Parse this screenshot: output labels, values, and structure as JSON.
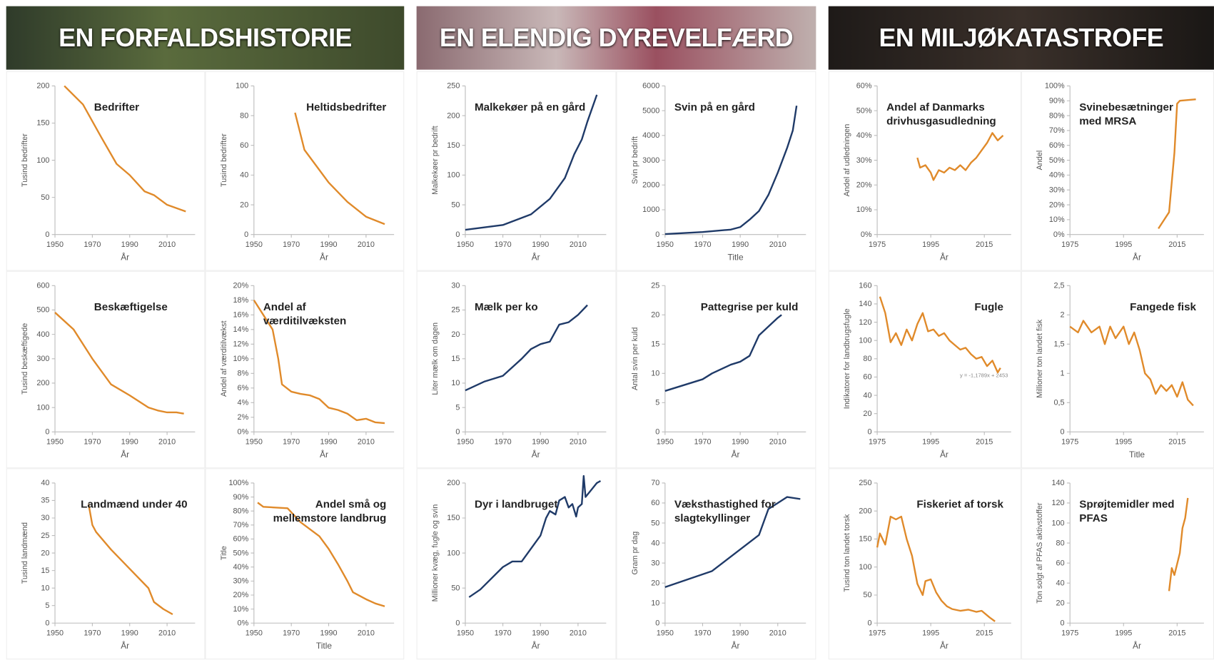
{
  "sections": [
    "EN FORFALDSHISTORIE",
    "EN ELENDIG DYREVELFÆRD",
    "EN MILJØKATASTROFE"
  ],
  "chart_data": [
    {
      "type": "line",
      "title": "Bedrifter",
      "ylabel": "Tusind bedrifter",
      "xlabel": "År",
      "color": "#e08a2a",
      "x": [
        1955,
        1965,
        1975,
        1983,
        1990,
        1998,
        2003,
        2010,
        2020
      ],
      "values": [
        200,
        175,
        130,
        95,
        80,
        58,
        53,
        40,
        31
      ],
      "xlim": [
        1950,
        2025
      ],
      "xticks": [
        1950,
        1970,
        1990,
        2010
      ],
      "ylim": [
        0,
        200
      ],
      "yticks": [
        0,
        50,
        100,
        150,
        200
      ]
    },
    {
      "type": "line",
      "title": "Heltidsbedrifter",
      "ylabel": "Tusind bedrifter",
      "xlabel": "År",
      "color": "#e08a2a",
      "x": [
        1972,
        1977,
        1990,
        2000,
        2010,
        2020
      ],
      "values": [
        82,
        57,
        35,
        22,
        12,
        7
      ],
      "xlim": [
        1950,
        2025
      ],
      "xticks": [
        1950,
        1970,
        1990,
        2010
      ],
      "ylim": [
        0,
        100
      ],
      "yticks": [
        0,
        20,
        40,
        60,
        80,
        100
      ]
    },
    {
      "type": "line",
      "title": "Beskæftigelse",
      "ylabel": "Tusind beskæftigede",
      "xlabel": "År",
      "color": "#e08a2a",
      "x": [
        1950,
        1960,
        1970,
        1980,
        1990,
        2000,
        2005,
        2010,
        2015,
        2019
      ],
      "values": [
        490,
        420,
        300,
        195,
        150,
        100,
        88,
        80,
        80,
        75
      ],
      "xlim": [
        1950,
        2025
      ],
      "xticks": [
        1950,
        1970,
        1990,
        2010
      ],
      "ylim": [
        0,
        600
      ],
      "yticks": [
        0,
        100,
        200,
        300,
        400,
        500,
        600
      ]
    },
    {
      "type": "line",
      "title": "Andel af værditilvæksten",
      "ylabel": "Andel af værditilvækst",
      "xlabel": "År",
      "color": "#e08a2a",
      "x": [
        1950,
        1955,
        1960,
        1963,
        1965,
        1970,
        1975,
        1980,
        1985,
        1990,
        1995,
        2000,
        2005,
        2010,
        2015,
        2020
      ],
      "values": [
        18,
        16,
        14,
        10,
        6.5,
        5.5,
        5.2,
        5,
        4.5,
        3.3,
        3,
        2.5,
        1.6,
        1.8,
        1.3,
        1.2
      ],
      "xlim": [
        1950,
        2025
      ],
      "xticks": [
        1950,
        1970,
        1990,
        2010
      ],
      "ylim": [
        0,
        20
      ],
      "yticks": [
        {
          "value": 0,
          "label": "0%"
        },
        {
          "value": 2,
          "label": "2%"
        },
        {
          "value": 4,
          "label": "4%"
        },
        {
          "value": 6,
          "label": "6%"
        },
        {
          "value": 8,
          "label": "8%"
        },
        {
          "value": 10,
          "label": "10%"
        },
        {
          "value": 12,
          "label": "12%"
        },
        {
          "value": 14,
          "label": "14%"
        },
        {
          "value": 16,
          "label": "16%"
        },
        {
          "value": 18,
          "label": "18%"
        },
        {
          "value": 20,
          "label": "20%"
        }
      ]
    },
    {
      "type": "line",
      "title": "Landmænd under 40",
      "ylabel": "Tusind landmænd",
      "xlabel": "År",
      "color": "#e08a2a",
      "x": [
        1968,
        1970,
        1972,
        1980,
        1990,
        2000,
        2003,
        2008,
        2013
      ],
      "values": [
        34,
        28,
        26,
        21,
        15.5,
        10,
        6,
        4,
        2.5
      ],
      "xlim": [
        1950,
        2025
      ],
      "xticks": [
        1950,
        1970,
        1990,
        2010
      ],
      "ylim": [
        0,
        40
      ],
      "yticks": [
        0,
        5,
        10,
        15,
        20,
        25,
        30,
        35,
        40
      ]
    },
    {
      "type": "line",
      "title": "Andel små og mellemstore landbrug",
      "ylabel": "Title",
      "xlabel": "Title",
      "color": "#e08a2a",
      "x": [
        1952,
        1955,
        1968,
        1975,
        1985,
        1990,
        1995,
        2000,
        2003,
        2010,
        2015,
        2020
      ],
      "values": [
        86,
        83,
        82,
        72,
        62,
        53,
        42,
        30,
        22,
        17,
        14,
        12
      ],
      "xlim": [
        1950,
        2025
      ],
      "xticks": [
        1950,
        1970,
        1990,
        2010
      ],
      "ylim": [
        0,
        100
      ],
      "yticks": [
        {
          "value": 0,
          "label": "0%"
        },
        {
          "value": 10,
          "label": "10%"
        },
        {
          "value": 20,
          "label": "20%"
        },
        {
          "value": 30,
          "label": "30%"
        },
        {
          "value": 40,
          "label": "40%"
        },
        {
          "value": 50,
          "label": "50%"
        },
        {
          "value": 60,
          "label": "60%"
        },
        {
          "value": 70,
          "label": "70%"
        },
        {
          "value": 80,
          "label": "80%"
        },
        {
          "value": 90,
          "label": "90%"
        },
        {
          "value": 100,
          "label": "100%"
        }
      ]
    },
    {
      "type": "line",
      "title": "Malkekøer på en gård",
      "ylabel": "Malkekøer pr bedrift",
      "xlabel": "År",
      "color": "#1f3a68",
      "x": [
        1950,
        1960,
        1970,
        1980,
        1985,
        1995,
        2003,
        2008,
        2012,
        2015,
        2020
      ],
      "values": [
        8,
        12,
        16,
        28,
        34,
        60,
        95,
        135,
        160,
        190,
        235
      ],
      "xlim": [
        1950,
        2025
      ],
      "xticks": [
        1950,
        1970,
        1990,
        2010
      ],
      "ylim": [
        0,
        250
      ],
      "yticks": [
        0,
        50,
        100,
        150,
        200,
        250
      ]
    },
    {
      "type": "line",
      "title": "Svin på en gård",
      "ylabel": "Svin pr bedrift",
      "xlabel": "Title",
      "color": "#1f3a68",
      "x": [
        1950,
        1970,
        1985,
        1990,
        1995,
        2000,
        2005,
        2010,
        2015,
        2018,
        2020
      ],
      "values": [
        20,
        100,
        200,
        300,
        600,
        950,
        1600,
        2500,
        3500,
        4200,
        5200
      ],
      "xlim": [
        1950,
        2025
      ],
      "xticks": [
        1950,
        1970,
        1990,
        2010
      ],
      "ylim": [
        0,
        6000
      ],
      "yticks": [
        0,
        1000,
        2000,
        3000,
        4000,
        5000,
        6000
      ]
    },
    {
      "type": "line",
      "title": "Mælk per ko",
      "ylabel": "Liter mælk om dagen",
      "xlabel": "År",
      "color": "#1f3a68",
      "x": [
        1950,
        1960,
        1970,
        1980,
        1985,
        1990,
        1995,
        2000,
        2005,
        2010,
        2015
      ],
      "values": [
        8.5,
        10.3,
        11.5,
        15,
        17,
        18,
        18.5,
        22,
        22.5,
        24,
        26
      ],
      "xlim": [
        1950,
        2025
      ],
      "xticks": [
        1950,
        1970,
        1990,
        2010
      ],
      "ylim": [
        0,
        30
      ],
      "yticks": [
        0,
        5,
        10,
        15,
        20,
        25,
        30
      ]
    },
    {
      "type": "line",
      "title": "Pattegrise per kuld",
      "ylabel": "Antal svin per kuld",
      "xlabel": "År",
      "color": "#1f3a68",
      "x": [
        1950,
        1970,
        1975,
        1985,
        1990,
        1995,
        2000,
        2005,
        2010,
        2012
      ],
      "values": [
        7,
        9,
        10,
        11.5,
        12,
        13,
        16.5,
        18,
        19.5,
        20
      ],
      "xlim": [
        1950,
        2025
      ],
      "xticks": [
        1950,
        1970,
        1990,
        2010
      ],
      "ylim": [
        0,
        25
      ],
      "yticks": [
        0,
        5,
        10,
        15,
        20,
        25
      ]
    },
    {
      "type": "line",
      "title": "Dyr i landbruget",
      "ylabel": "Millioner kvæg, fugle og svin",
      "xlabel": "År",
      "color": "#1f3a68",
      "x": [
        1952,
        1958,
        1970,
        1975,
        1980,
        1990,
        1993,
        1995,
        1998,
        2000,
        2003,
        2005,
        2007,
        2009,
        2010,
        2012,
        2013,
        2014,
        2017,
        2020,
        2022
      ],
      "values": [
        37,
        48,
        80,
        88,
        88,
        125,
        150,
        160,
        155,
        175,
        180,
        165,
        170,
        152,
        165,
        170,
        210,
        180,
        190,
        200,
        203
      ],
      "xlim": [
        1950,
        2025
      ],
      "xticks": [
        1950,
        1970,
        1990,
        2010
      ],
      "ylim": [
        0,
        200
      ],
      "yticks": [
        0,
        50,
        100,
        150,
        200
      ]
    },
    {
      "type": "line",
      "title": "Væksthastighed for slagtekyllinger",
      "ylabel": "Gram pr dag",
      "xlabel": "År",
      "color": "#1f3a68",
      "x": [
        1950,
        1975,
        2000,
        2005,
        2010,
        2015,
        2022
      ],
      "values": [
        18,
        26,
        44,
        57,
        60,
        63,
        62
      ],
      "xlim": [
        1950,
        2025
      ],
      "xticks": [
        1950,
        1970,
        1990,
        2010
      ],
      "ylim": [
        0,
        70
      ],
      "yticks": [
        0,
        10,
        20,
        30,
        40,
        50,
        60,
        70
      ]
    },
    {
      "type": "line",
      "title": "Andel af Danmarks drivhusgasudledning",
      "ylabel": "Andel af udledningen",
      "xlabel": "År",
      "color": "#e08a2a",
      "x": [
        1990,
        1991,
        1993,
        1995,
        1996,
        1998,
        2000,
        2002,
        2004,
        2006,
        2008,
        2010,
        2012,
        2014,
        2016,
        2018,
        2020,
        2022
      ],
      "values": [
        31,
        27,
        28,
        25,
        22,
        26,
        25,
        27,
        26,
        28,
        26,
        29,
        31,
        34,
        37,
        41,
        38,
        40
      ],
      "xlim": [
        1975,
        2025
      ],
      "xticks": [
        1975,
        1995,
        2015
      ],
      "ylim": [
        0,
        60
      ],
      "yticks": [
        {
          "value": 0,
          "label": "0%"
        },
        {
          "value": 10,
          "label": "10%"
        },
        {
          "value": 20,
          "label": "20%"
        },
        {
          "value": 30,
          "label": "30%"
        },
        {
          "value": 40,
          "label": "40%"
        },
        {
          "value": 50,
          "label": "50%"
        },
        {
          "value": 60,
          "label": "60%"
        }
      ]
    },
    {
      "type": "line",
      "title": "Svinebesætninger med MRSA",
      "ylabel": "Andel",
      "xlabel": "År",
      "color": "#e08a2a",
      "x": [
        2008,
        2012,
        2014,
        2015,
        2016,
        2022
      ],
      "values": [
        4,
        15,
        55,
        88,
        90,
        91
      ],
      "xlim": [
        1975,
        2025
      ],
      "xticks": [
        1975,
        1995,
        2015
      ],
      "ylim": [
        0,
        100
      ],
      "yticks": [
        {
          "value": 0,
          "label": "0%"
        },
        {
          "value": 10,
          "label": "10%"
        },
        {
          "value": 20,
          "label": "20%"
        },
        {
          "value": 30,
          "label": "30%"
        },
        {
          "value": 40,
          "label": "40%"
        },
        {
          "value": 50,
          "label": "50%"
        },
        {
          "value": 60,
          "label": "60%"
        },
        {
          "value": 70,
          "label": "70%"
        },
        {
          "value": 80,
          "label": "80%"
        },
        {
          "value": 90,
          "label": "90%"
        },
        {
          "value": 100,
          "label": "100%"
        }
      ]
    },
    {
      "type": "line",
      "title": "Fugle",
      "ylabel": "Indikatorer for landbrugsfugle",
      "xlabel": "År",
      "color": "#e08a2a",
      "annotation": "y = -1,1789x + 2453",
      "x": [
        1976,
        1978,
        1980,
        1982,
        1984,
        1986,
        1988,
        1990,
        1992,
        1994,
        1996,
        1998,
        2000,
        2002,
        2004,
        2006,
        2008,
        2010,
        2012,
        2014,
        2016,
        2018,
        2020,
        2021
      ],
      "values": [
        148,
        130,
        98,
        108,
        95,
        112,
        100,
        118,
        130,
        110,
        112,
        105,
        108,
        100,
        95,
        90,
        92,
        85,
        80,
        82,
        72,
        78,
        65,
        70
      ],
      "xlim": [
        1975,
        2025
      ],
      "xticks": [
        1975,
        1995,
        2015
      ],
      "ylim": [
        0,
        160
      ],
      "yticks": [
        0,
        20,
        40,
        60,
        80,
        100,
        120,
        140,
        160
      ]
    },
    {
      "type": "line",
      "title": "Fangede fisk",
      "ylabel": "Millioner ton landet fisk",
      "xlabel": "Title",
      "color": "#e08a2a",
      "x": [
        1975,
        1978,
        1980,
        1983,
        1986,
        1988,
        1990,
        1992,
        1995,
        1997,
        1999,
        2001,
        2003,
        2005,
        2007,
        2009,
        2011,
        2013,
        2015,
        2017,
        2019,
        2021
      ],
      "values": [
        1.8,
        1.7,
        1.9,
        1.7,
        1.8,
        1.5,
        1.8,
        1.6,
        1.8,
        1.5,
        1.7,
        1.4,
        1.0,
        0.9,
        0.65,
        0.8,
        0.7,
        0.8,
        0.6,
        0.85,
        0.55,
        0.45
      ],
      "xlim": [
        1975,
        2025
      ],
      "xticks": [
        1975,
        1995,
        2015
      ],
      "ylim": [
        0,
        2.5
      ],
      "yticks": [
        0,
        {
          "value": 0.5,
          "label": "0,5"
        },
        1,
        {
          "value": 1.5,
          "label": "1,5"
        },
        2,
        {
          "value": 2.5,
          "label": "2,5"
        }
      ]
    },
    {
      "type": "line",
      "title": "Fiskeriet af torsk",
      "ylabel": "Tusind ton landet torsk",
      "xlabel": "År",
      "color": "#e08a2a",
      "x": [
        1975,
        1976,
        1978,
        1980,
        1982,
        1984,
        1986,
        1988,
        1990,
        1992,
        1993,
        1995,
        1997,
        1999,
        2001,
        2003,
        2006,
        2009,
        2012,
        2014,
        2017,
        2019
      ],
      "values": [
        135,
        160,
        140,
        190,
        185,
        190,
        150,
        120,
        70,
        50,
        75,
        78,
        55,
        40,
        30,
        25,
        22,
        24,
        20,
        22,
        10,
        3
      ],
      "xlim": [
        1975,
        2025
      ],
      "xticks": [
        1975,
        1995,
        2015
      ],
      "ylim": [
        0,
        250
      ],
      "yticks": [
        0,
        50,
        100,
        150,
        200,
        250
      ]
    },
    {
      "type": "line",
      "title": "Sprøjtemidler med PFAS",
      "ylabel": "Ton solgt af PFAS aktivstoffer",
      "xlabel": "År",
      "color": "#e08a2a",
      "x": [
        2012,
        2013,
        2014,
        2016,
        2017,
        2018,
        2019
      ],
      "values": [
        32,
        55,
        48,
        70,
        95,
        105,
        125
      ],
      "xlim": [
        1975,
        2025
      ],
      "xticks": [
        1975,
        1995,
        2015
      ],
      "ylim": [
        0,
        140
      ],
      "yticks": [
        0,
        20,
        40,
        60,
        80,
        100,
        120,
        140
      ]
    }
  ]
}
